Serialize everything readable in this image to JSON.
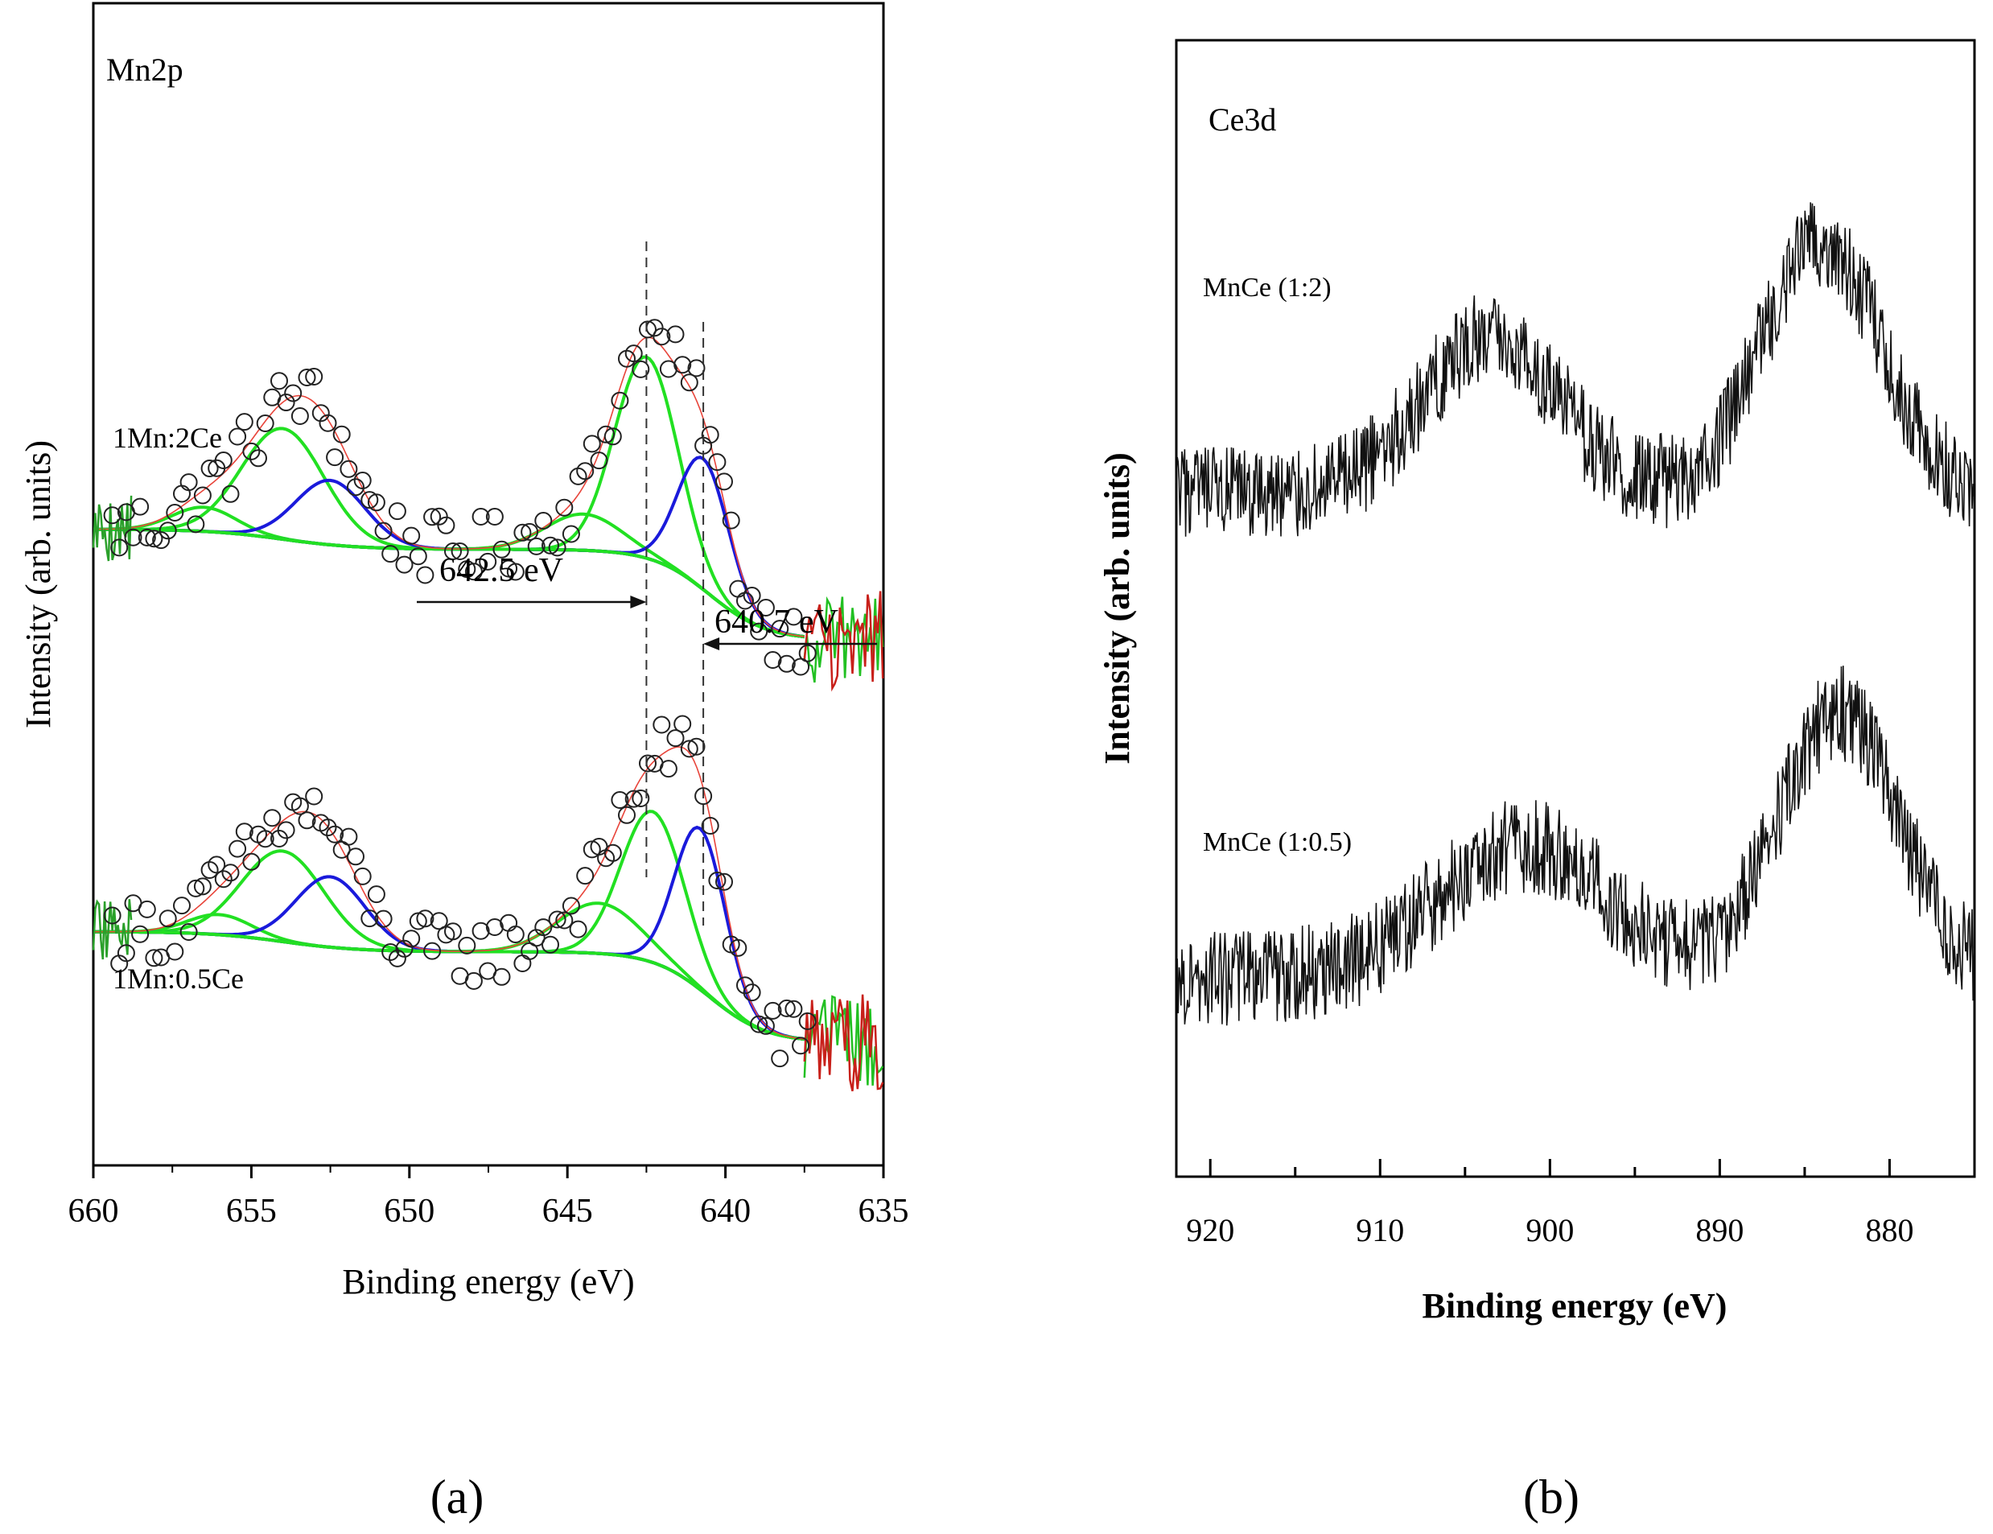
{
  "chart_data": [
    {
      "id": "a",
      "type": "line",
      "title": "Mn2p",
      "xlabel": "Binding energy (eV)",
      "ylabel": "Intensity (arb. units)",
      "xlim": [
        660,
        635
      ],
      "x_reversed": true,
      "xticks": [
        660,
        655,
        650,
        645,
        640,
        635
      ],
      "yticks_labeled": false,
      "grid": false,
      "legend": "none",
      "panel_label": "(a)",
      "annotations": [
        {
          "text": "642.5 eV",
          "x": 642.5,
          "arrow": "right"
        },
        {
          "text": "640.7 eV",
          "x": 640.7,
          "arrow": "left"
        }
      ],
      "samples": [
        {
          "name": "1Mn:2Ce",
          "offset": 2.3,
          "baseline_left": 0.55,
          "baseline_mid": 0.45,
          "baseline_right": 0.0,
          "peaks": [
            {
              "color": "green",
              "center": 656.5,
              "height": 0.12,
              "width": 1.0
            },
            {
              "color": "green",
              "center": 654.0,
              "height": 0.55,
              "width": 1.3
            },
            {
              "color": "blue",
              "center": 652.5,
              "height": 0.32,
              "width": 1.1
            },
            {
              "color": "green",
              "center": 644.5,
              "height": 0.18,
              "width": 1.2
            },
            {
              "color": "green",
              "center": 642.5,
              "height": 1.0,
              "width": 1.0
            },
            {
              "color": "blue",
              "center": 640.7,
              "height": 0.65,
              "width": 0.8
            }
          ]
        },
        {
          "name": "1Mn:0.5Ce",
          "offset": 0.3,
          "baseline_left": 0.55,
          "baseline_mid": 0.45,
          "baseline_right": 0.0,
          "peaks": [
            {
              "color": "green",
              "center": 656.0,
              "height": 0.1,
              "width": 1.0
            },
            {
              "color": "green",
              "center": 654.0,
              "height": 0.45,
              "width": 1.3
            },
            {
              "color": "blue",
              "center": 652.5,
              "height": 0.35,
              "width": 1.1
            },
            {
              "color": "green",
              "center": 644.0,
              "height": 0.25,
              "width": 1.3
            },
            {
              "color": "green",
              "center": 642.3,
              "height": 0.75,
              "width": 1.0
            },
            {
              "color": "blue",
              "center": 640.8,
              "height": 0.8,
              "width": 0.8
            }
          ]
        }
      ]
    },
    {
      "id": "b",
      "type": "line",
      "title": "Ce3d",
      "xlabel": "Binding energy (eV)",
      "ylabel": "Intensity (arb. units)",
      "xlim": [
        922,
        875
      ],
      "x_reversed": true,
      "xticks": [
        920,
        910,
        900,
        890,
        880
      ],
      "yticks_labeled": false,
      "grid": false,
      "legend": "none",
      "panel_label": "(b)",
      "series": [
        {
          "name": "MnCe (1:2)",
          "offset": 2.2,
          "baseline": 0.25,
          "peaks": [
            {
              "center": 903.5,
              "height": 0.65,
              "width": 4.0
            },
            {
              "center": 884.0,
              "height": 1.05,
              "width": 3.5
            }
          ],
          "noise": 0.2
        },
        {
          "name": "MnCe (1:0.5)",
          "offset": 0.2,
          "baseline": 0.25,
          "peaks": [
            {
              "center": 901.5,
              "height": 0.55,
              "width": 5.0
            },
            {
              "center": 883.0,
              "height": 1.1,
              "width": 3.5
            }
          ],
          "noise": 0.2
        }
      ]
    }
  ]
}
